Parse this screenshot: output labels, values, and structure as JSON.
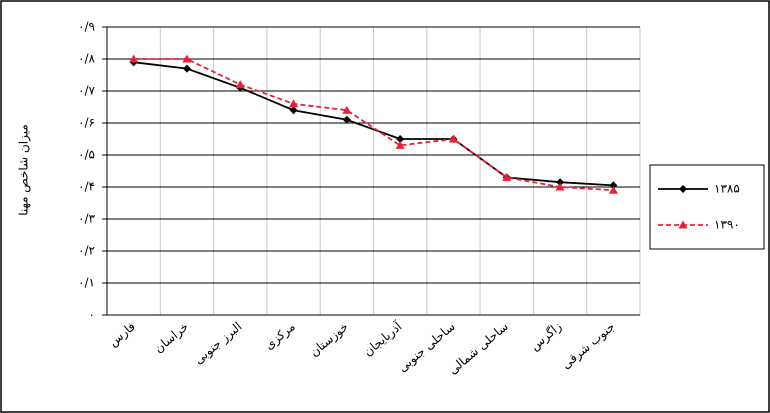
{
  "chart_data": {
    "type": "line",
    "y_label": "میزان شاخص مهنا",
    "categories": [
      "فارس",
      "خراسان",
      "البرز جنوبی",
      "مرکزی",
      "خوزستان",
      "آذربایجان",
      "ساحلی جنوبی",
      "ساحلی شمالی",
      "زاگرس",
      "جنوب شرقی"
    ],
    "series": [
      {
        "name": "۱۳۸۵",
        "color": "#000000",
        "style": "solid",
        "marker": "diamond",
        "values": [
          0.79,
          0.77,
          0.71,
          0.64,
          0.61,
          0.55,
          0.55,
          0.43,
          0.415,
          0.405
        ]
      },
      {
        "name": "۱۳۹۰",
        "color": "#e8203a",
        "style": "dashed",
        "marker": "triangle",
        "values": [
          0.8,
          0.8,
          0.72,
          0.66,
          0.64,
          0.53,
          0.55,
          0.43,
          0.4,
          0.39
        ]
      }
    ],
    "ylim": [
      0,
      0.9
    ],
    "yticks": [
      {
        "value": 0,
        "label": "۰"
      },
      {
        "value": 0.1,
        "label": "۰/۱"
      },
      {
        "value": 0.2,
        "label": "۰/۲"
      },
      {
        "value": 0.3,
        "label": "۰/۳"
      },
      {
        "value": 0.4,
        "label": "۰/۴"
      },
      {
        "value": 0.5,
        "label": "۰/۵"
      },
      {
        "value": 0.6,
        "label": "۰/۶"
      },
      {
        "value": 0.7,
        "label": "۰/۷"
      },
      {
        "value": 0.8,
        "label": "۰/۸"
      },
      {
        "value": 0.9,
        "label": "۰/۹"
      }
    ],
    "grid": true,
    "legend": "right"
  }
}
